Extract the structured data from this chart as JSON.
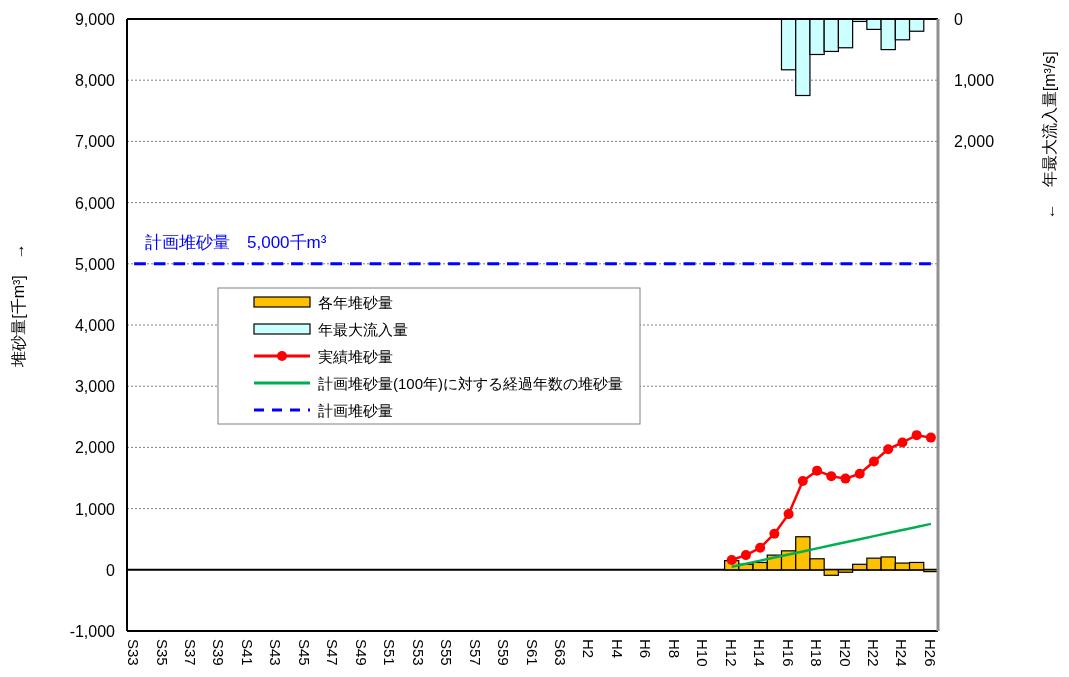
{
  "chart_data": {
    "type": "bar",
    "categories": [
      "S33",
      null,
      "S35",
      null,
      "S37",
      null,
      "S39",
      null,
      "S41",
      null,
      "S43",
      null,
      "S45",
      null,
      "S47",
      null,
      "S49",
      null,
      "S51",
      null,
      "S53",
      null,
      "S55",
      null,
      "S57",
      null,
      "S59",
      null,
      "S61",
      null,
      "S63",
      null,
      "H2",
      null,
      "H4",
      null,
      "H6",
      null,
      "H8",
      null,
      "H10",
      null,
      "H12",
      null,
      "H14",
      null,
      "H16",
      null,
      "H18",
      null,
      "H20",
      null,
      "H22",
      null,
      "H24",
      null,
      "H26"
    ],
    "ylabel": "堆砂量[千m³]　→",
    "y2label": "←　年最大流入量[m³/s]",
    "ylim": [
      -1000,
      9000
    ],
    "yticks": [
      {
        "value": -1000,
        "label": "-1,000"
      },
      0,
      {
        "value": 1000,
        "label": "1,000"
      },
      {
        "value": 2000,
        "label": "2,000"
      },
      {
        "value": 3000,
        "label": "3,000"
      },
      {
        "value": 4000,
        "label": "4,000"
      },
      {
        "value": 5000,
        "label": "5,000"
      },
      {
        "value": 6000,
        "label": "6,000"
      },
      {
        "value": 7000,
        "label": "7,000"
      },
      {
        "value": 8000,
        "label": "8,000"
      },
      {
        "value": 9000,
        "label": "9,000"
      }
    ],
    "y2lim": [
      10000,
      0
    ],
    "y2ticks": [
      0,
      {
        "value": 1000,
        "label": "1,000"
      },
      {
        "value": 2000,
        "label": "2,000"
      }
    ],
    "grid": "y",
    "legend": "left",
    "annotations": [
      {
        "text": "計画堆砂量　5,000千m³",
        "y": 5000
      }
    ],
    "series": [
      {
        "name": "各年堆砂量",
        "color": "#ffc000",
        "values": [
          null,
          null,
          null,
          null,
          null,
          null,
          null,
          null,
          null,
          null,
          null,
          null,
          null,
          null,
          null,
          null,
          null,
          null,
          null,
          null,
          null,
          null,
          null,
          null,
          null,
          null,
          null,
          null,
          null,
          null,
          null,
          null,
          null,
          null,
          null,
          null,
          null,
          null,
          null,
          null,
          null,
          null,
          150,
          90,
          120,
          240,
          310,
          540,
          180,
          -90,
          -40,
          90,
          190,
          210,
          110,
          120,
          -30
        ]
      },
      {
        "name": "年最大流入量",
        "axis": "y2",
        "color": "#ccffff",
        "values": [
          null,
          null,
          null,
          null,
          null,
          null,
          null,
          null,
          null,
          null,
          null,
          null,
          null,
          null,
          null,
          null,
          null,
          null,
          null,
          null,
          null,
          null,
          null,
          null,
          null,
          null,
          null,
          null,
          null,
          null,
          null,
          null,
          null,
          null,
          null,
          null,
          null,
          null,
          null,
          null,
          null,
          null,
          null,
          null,
          null,
          null,
          830,
          1250,
          580,
          530,
          470,
          40,
          170,
          500,
          340,
          200,
          null
        ]
      },
      {
        "name": "実績堆砂量",
        "type": "line",
        "color": "#ff0000",
        "marker": "circle",
        "line_style": "solid",
        "values": [
          null,
          null,
          null,
          null,
          null,
          null,
          null,
          null,
          null,
          null,
          null,
          null,
          null,
          null,
          null,
          null,
          null,
          null,
          null,
          null,
          null,
          null,
          null,
          null,
          null,
          null,
          null,
          null,
          null,
          null,
          null,
          null,
          null,
          null,
          null,
          null,
          null,
          null,
          null,
          null,
          null,
          null,
          160,
          240,
          360,
          590,
          910,
          1450,
          1620,
          1530,
          1490,
          1570,
          1770,
          1970,
          2080,
          2200,
          2160
        ]
      },
      {
        "name": "計画堆砂量(100年)に対する経過年数の堆砂量",
        "type": "line",
        "color": "#00b050",
        "marker": "none",
        "line_style": "solid",
        "values": [
          null,
          null,
          null,
          null,
          null,
          null,
          null,
          null,
          null,
          null,
          null,
          null,
          null,
          null,
          null,
          null,
          null,
          null,
          null,
          null,
          null,
          null,
          null,
          null,
          null,
          null,
          null,
          null,
          null,
          null,
          null,
          null,
          null,
          null,
          null,
          null,
          null,
          null,
          null,
          null,
          null,
          null,
          50,
          100,
          150,
          200,
          250,
          300,
          350,
          400,
          450,
          500,
          550,
          600,
          650,
          700,
          750
        ]
      },
      {
        "name": "計画堆砂量",
        "type": "line",
        "color": "#0000ff",
        "marker": "none",
        "line_style": "dashed",
        "values": [
          5000,
          5000,
          5000,
          5000,
          5000,
          5000,
          5000,
          5000,
          5000,
          5000,
          5000,
          5000,
          5000,
          5000,
          5000,
          5000,
          5000,
          5000,
          5000,
          5000,
          5000,
          5000,
          5000,
          5000,
          5000,
          5000,
          5000,
          5000,
          5000,
          5000,
          5000,
          5000,
          5000,
          5000,
          5000,
          5000,
          5000,
          5000,
          5000,
          5000,
          5000,
          5000,
          5000,
          5000,
          5000,
          5000,
          5000,
          5000,
          5000,
          5000,
          5000,
          5000,
          5000,
          5000,
          5000,
          5000,
          5000
        ]
      }
    ]
  }
}
